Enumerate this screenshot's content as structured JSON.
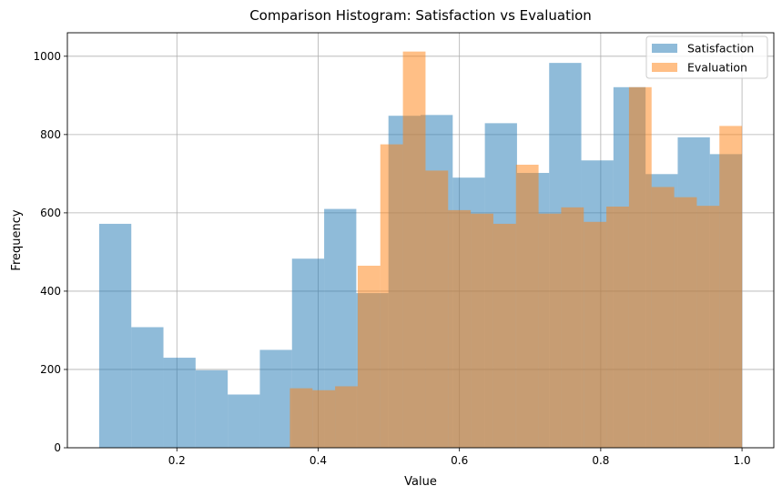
{
  "chart_data": {
    "type": "bar",
    "subtype": "overlapping-histogram",
    "title": "Comparison Histogram: Satisfaction vs Evaluation",
    "xlabel": "Value",
    "ylabel": "Frequency",
    "xlim": [
      0.045,
      1.045
    ],
    "ylim": [
      0,
      1060
    ],
    "xticks": [
      0.2,
      0.4,
      0.6,
      0.8,
      1.0
    ],
    "xtick_labels": [
      "0.2",
      "0.4",
      "0.6",
      "0.8",
      "1.0"
    ],
    "yticks": [
      0,
      200,
      400,
      600,
      800,
      1000
    ],
    "ytick_labels": [
      "0",
      "200",
      "400",
      "600",
      "800",
      "1000"
    ],
    "grid": true,
    "legend_position": "top-right",
    "series": [
      {
        "name": "Satisfaction",
        "color": "#1f77b4",
        "alpha": 0.5,
        "bin_edges": [
          0.09,
          0.1355,
          0.181,
          0.2265,
          0.272,
          0.3175,
          0.363,
          0.4085,
          0.454,
          0.4995,
          0.545,
          0.5905,
          0.636,
          0.6815,
          0.727,
          0.7725,
          0.818,
          0.8635,
          0.909,
          0.9545,
          1.0
        ],
        "counts": [
          572,
          308,
          230,
          198,
          136,
          250,
          483,
          610,
          395,
          848,
          850,
          690,
          829,
          702,
          983,
          734,
          921,
          699,
          793,
          750
        ]
      },
      {
        "name": "Evaluation",
        "color": "#ff7f0e",
        "alpha": 0.5,
        "bin_edges": [
          0.36,
          0.392,
          0.424,
          0.456,
          0.488,
          0.52,
          0.552,
          0.584,
          0.616,
          0.648,
          0.68,
          0.712,
          0.744,
          0.776,
          0.808,
          0.84,
          0.872,
          0.904,
          0.936,
          0.968,
          1.0
        ],
        "counts": [
          152,
          147,
          157,
          465,
          775,
          1012,
          708,
          607,
          598,
          572,
          723,
          598,
          614,
          577,
          616,
          921,
          666,
          640,
          618,
          822
        ]
      }
    ]
  }
}
